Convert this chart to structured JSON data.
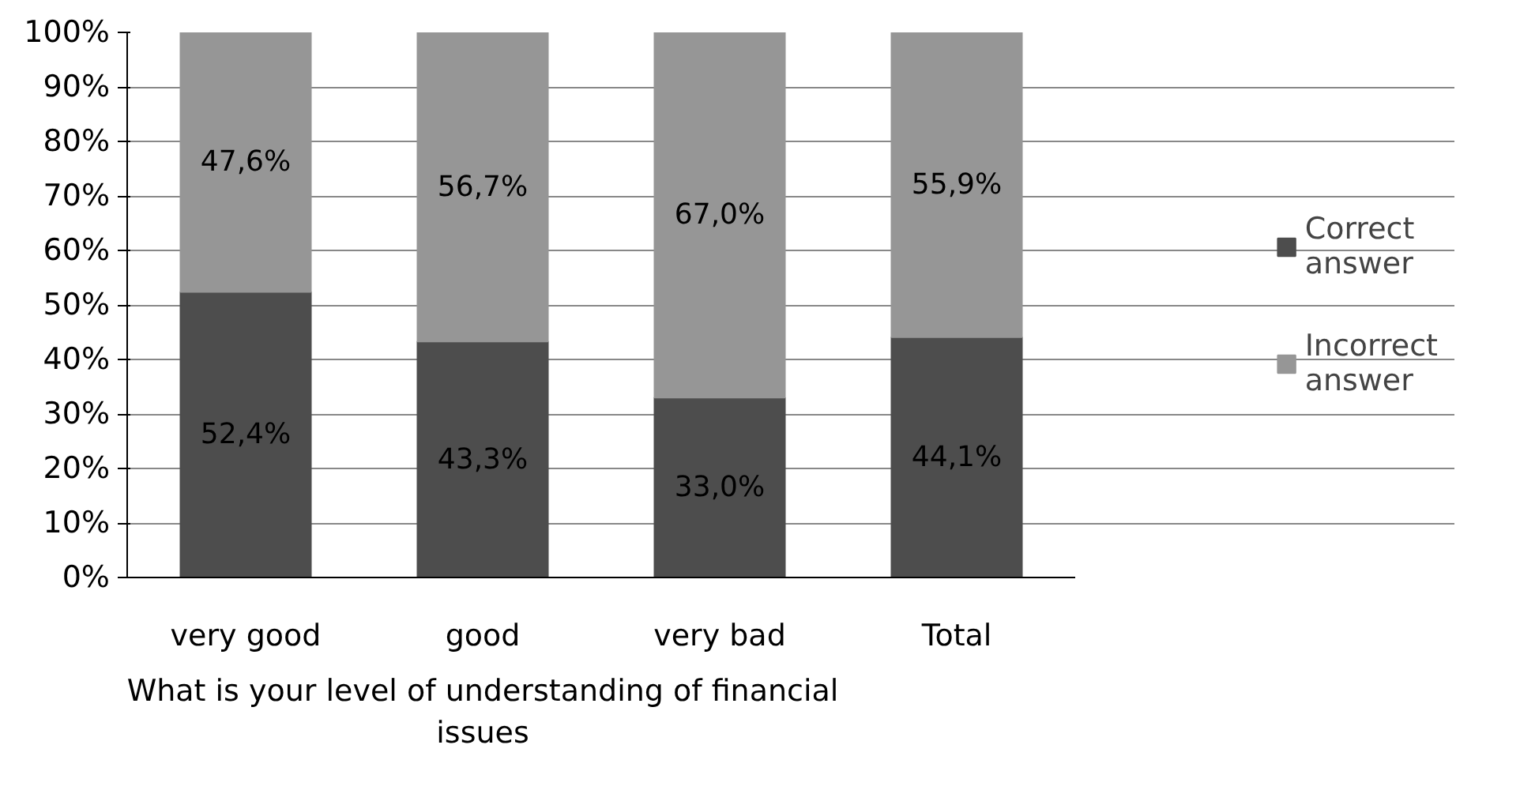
{
  "chart_data": {
    "type": "bar",
    "stacked": true,
    "categories": [
      "very good",
      "good",
      "very bad",
      "Total"
    ],
    "series": [
      {
        "name": "Correct answer",
        "color": "#4d4d4d",
        "values": [
          52.4,
          43.3,
          33.0,
          44.1
        ],
        "value_labels": [
          "52,4%",
          "43,3%",
          "33,0%",
          "44,1%"
        ]
      },
      {
        "name": "Incorrect answer",
        "color": "#969696",
        "values": [
          47.6,
          56.7,
          67.0,
          55.9
        ],
        "value_labels": [
          "47,6%",
          "56,7%",
          "67,0%",
          "55,9%"
        ]
      }
    ],
    "ylim": [
      0,
      100
    ],
    "yticks": [
      {
        "value": 0,
        "label": "0%"
      },
      {
        "value": 10,
        "label": "10%"
      },
      {
        "value": 20,
        "label": "20%"
      },
      {
        "value": 30,
        "label": "30%"
      },
      {
        "value": 40,
        "label": "40%"
      },
      {
        "value": 50,
        "label": "50%"
      },
      {
        "value": 60,
        "label": "60%"
      },
      {
        "value": 70,
        "label": "70%"
      },
      {
        "value": 80,
        "label": "80%"
      },
      {
        "value": 90,
        "label": "90%"
      },
      {
        "value": 100,
        "label": "100%"
      }
    ],
    "grid": "y",
    "legend": "right",
    "annotations": [
      "What is your level of understanding of financial issues"
    ]
  }
}
